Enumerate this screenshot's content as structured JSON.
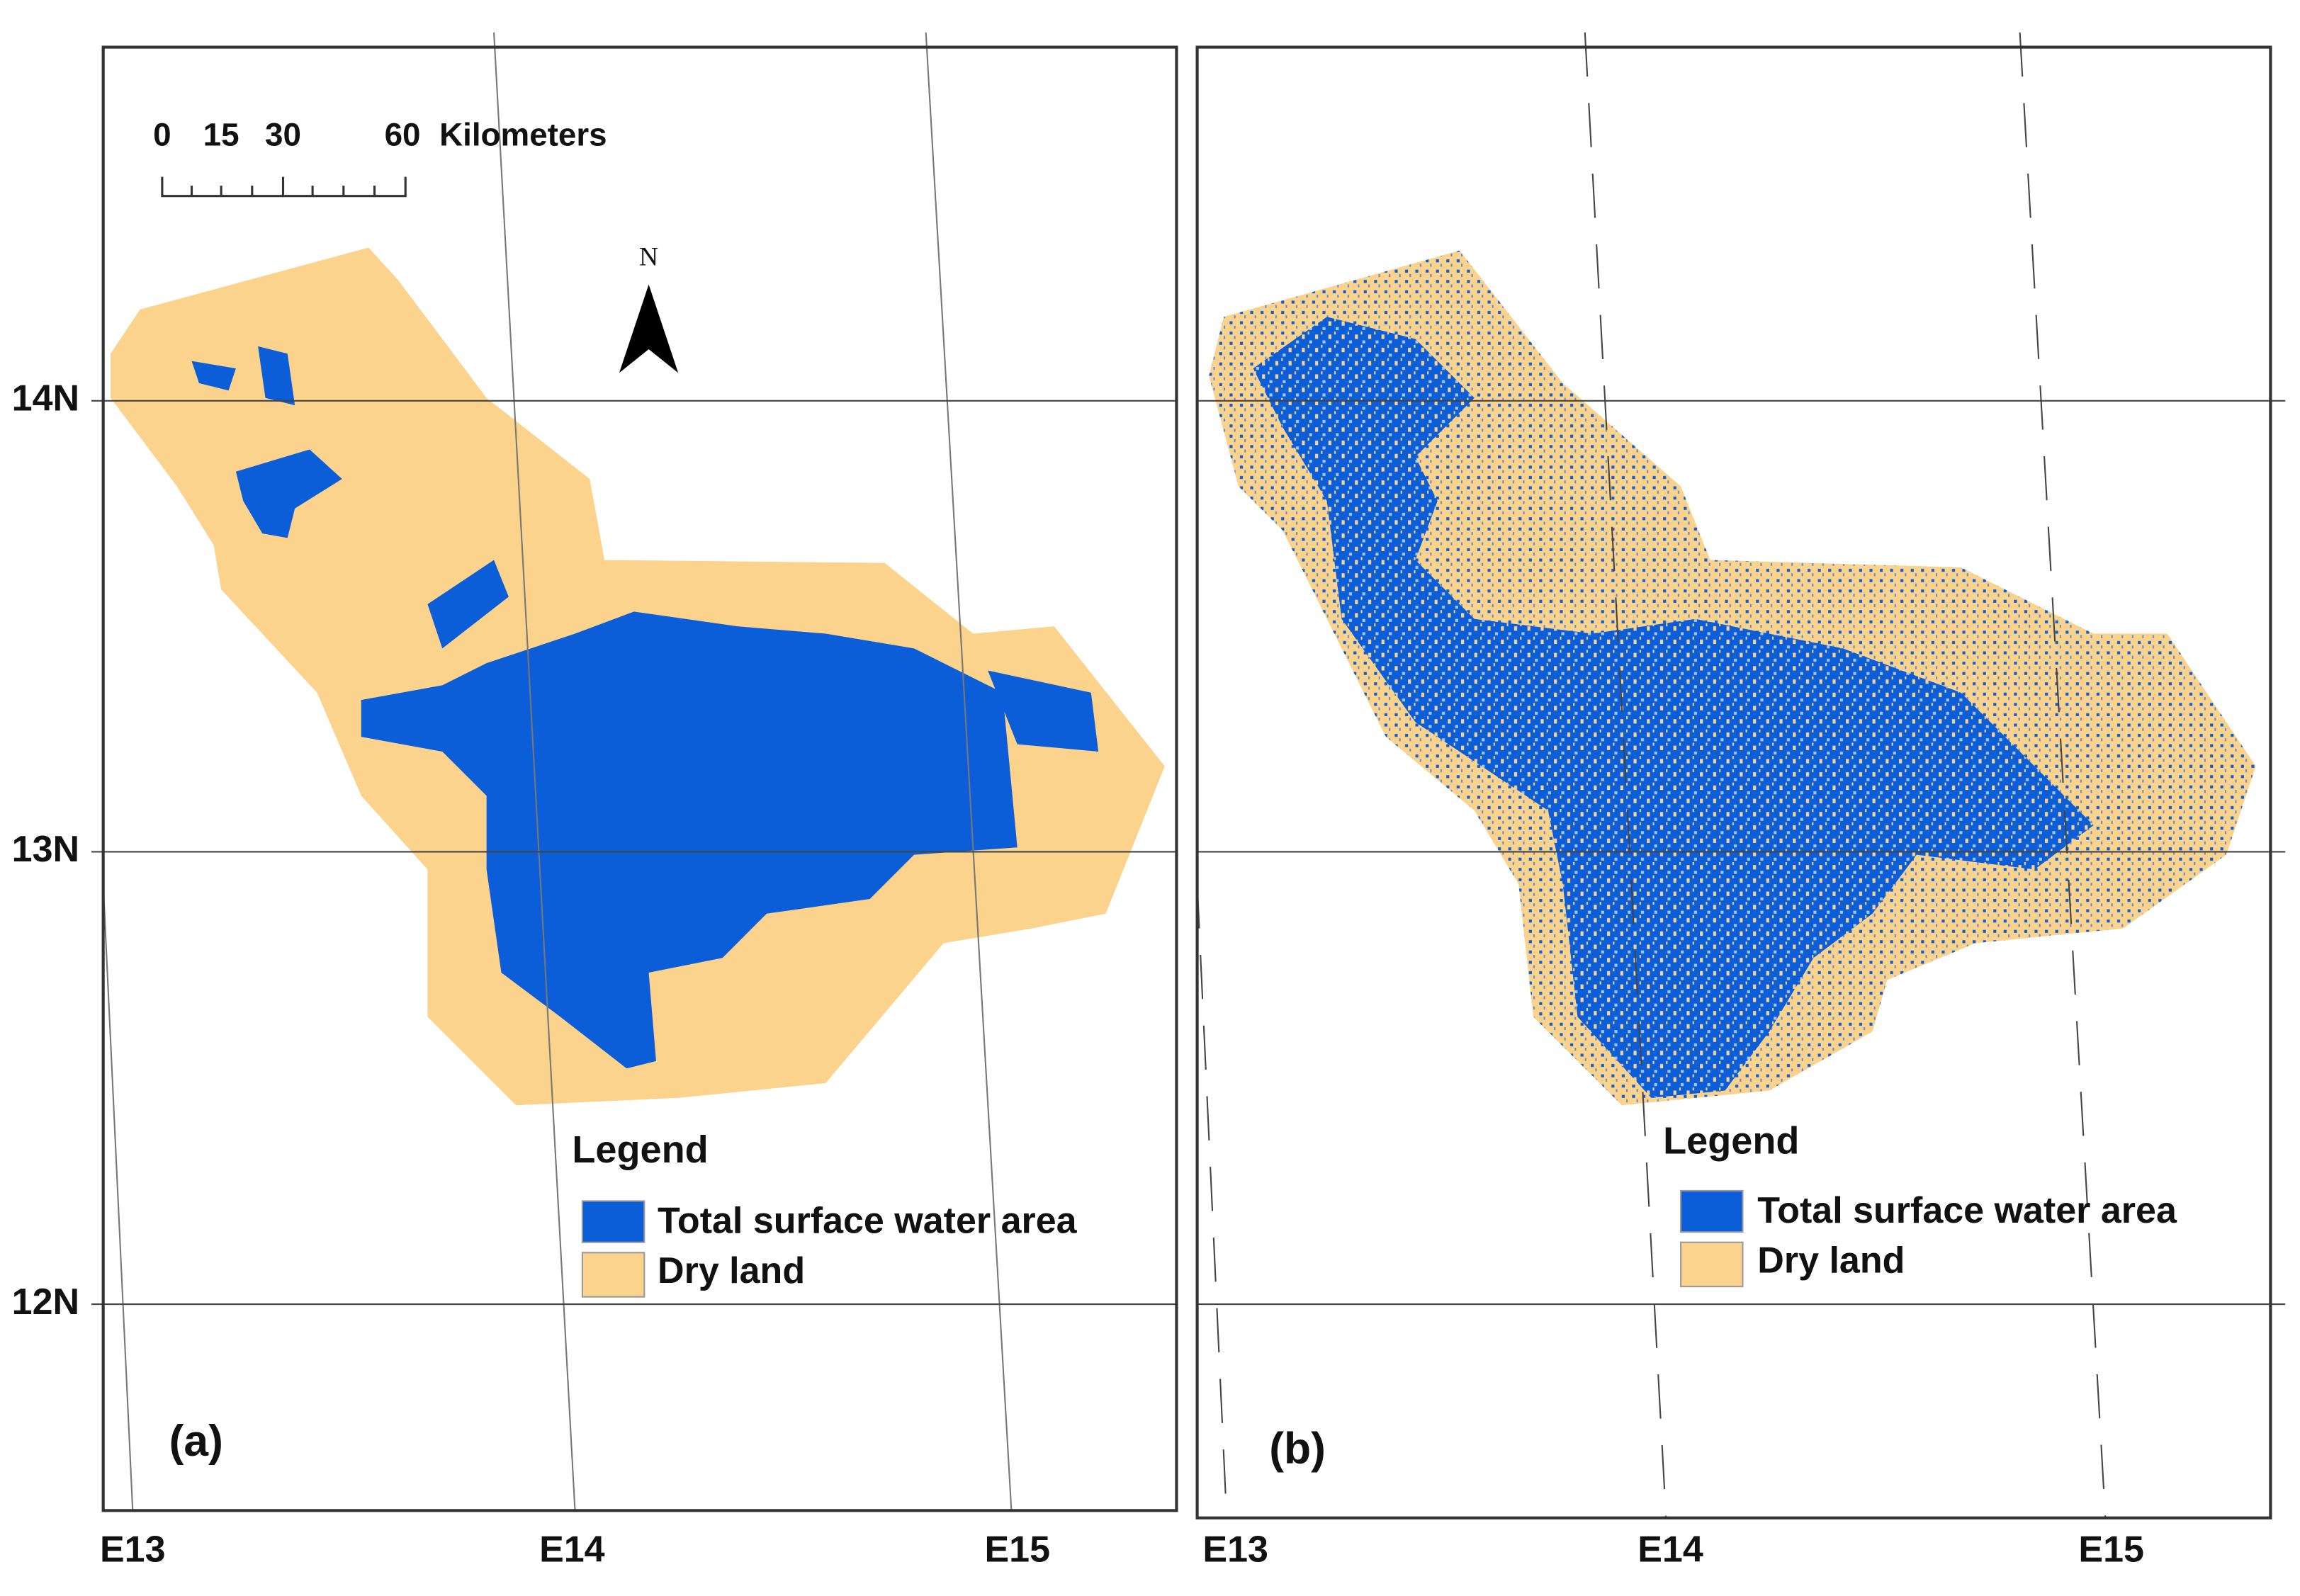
{
  "panels": [
    {
      "label": "(a)",
      "scale_bar": {
        "ticks": [
          "0",
          "15",
          "30",
          "60"
        ],
        "unit": "Kilometers"
      },
      "north_arrow": "N",
      "lat_labels": [
        "14N",
        "13N",
        "12N"
      ],
      "lon_labels": [
        "E13",
        "E14",
        "E15"
      ],
      "legend": {
        "title": "Legend",
        "items": [
          "Total surface water area",
          "Dry land"
        ]
      }
    },
    {
      "label": "(b)",
      "lon_labels": [
        "E13",
        "E14",
        "E15"
      ],
      "legend": {
        "title": "Legend",
        "items": [
          "Total surface water area",
          "Dry land"
        ]
      }
    }
  ]
}
